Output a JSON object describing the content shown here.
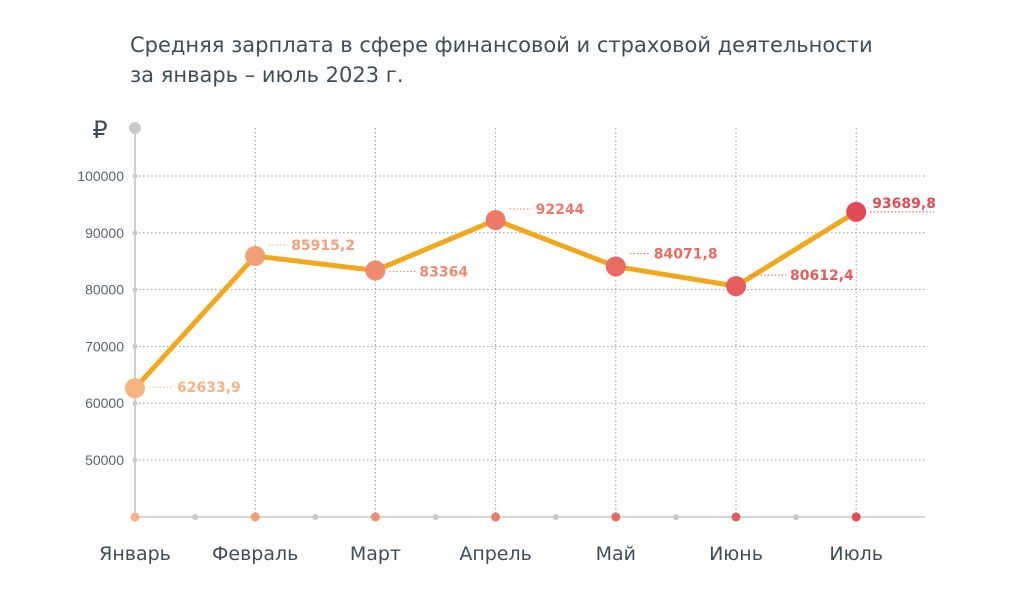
{
  "chart_data": {
    "type": "line",
    "title": "Средняя зарплата в сфере финансовой и страховой деятельности",
    "subtitle": "за январь – июль 2023 г.",
    "ylabel": "₽",
    "xlabel": "",
    "categories": [
      "Январь",
      "Февраль",
      "Март",
      "Апрель",
      "Май",
      "Июнь",
      "Июль"
    ],
    "values": [
      62633.9,
      85915.2,
      83364,
      92244,
      84071.8,
      80612.4,
      93689.8
    ],
    "value_labels": [
      "62633,9",
      "85915,2",
      "83364",
      "92244",
      "84071,8",
      "80612,4",
      "93689,8"
    ],
    "yticks": [
      50000,
      60000,
      70000,
      80000,
      90000,
      100000
    ],
    "ytick_labels": [
      "50000",
      "60000",
      "70000",
      "80000",
      "90000",
      "100000"
    ],
    "ylim": [
      40000,
      108000
    ],
    "grid": true,
    "line_color": "#f2a81d",
    "point_colors": [
      "#f7b480",
      "#f4a077",
      "#f08c6e",
      "#ec7a67",
      "#e96a62",
      "#e55c5d",
      "#e24b55"
    ]
  }
}
